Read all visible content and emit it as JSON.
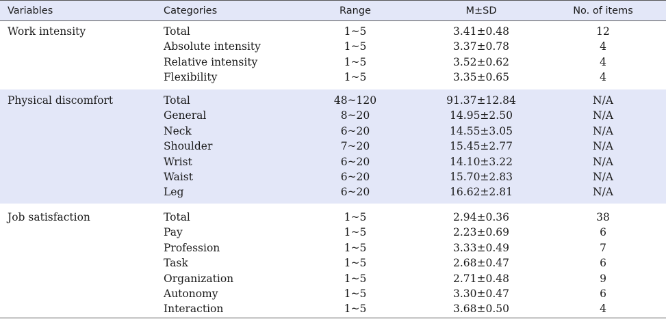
{
  "headers": {
    "variables": "Variables",
    "categories": "Categories",
    "range": "Range",
    "msd": "M±SD",
    "items": "No. of items"
  },
  "groups": [
    {
      "variable": "Work intensity",
      "rows": [
        {
          "category": "Total",
          "range": "1~5",
          "msd": "3.41±0.48",
          "items": "12"
        },
        {
          "category": "Absolute intensity",
          "range": "1~5",
          "msd": "3.37±0.78",
          "items": "4"
        },
        {
          "category": "Relative intensity",
          "range": "1~5",
          "msd": "3.52±0.62",
          "items": "4"
        },
        {
          "category": "Flexibility",
          "range": "1~5",
          "msd": "3.35±0.65",
          "items": "4"
        }
      ]
    },
    {
      "variable": "Physical discomfort",
      "rows": [
        {
          "category": "Total",
          "range": "48~120",
          "msd": "91.37±12.84",
          "items": "N/A"
        },
        {
          "category": "General",
          "range": "8~20",
          "msd": "14.95±2.50",
          "items": "N/A"
        },
        {
          "category": "Neck",
          "range": "6~20",
          "msd": "14.55±3.05",
          "items": "N/A"
        },
        {
          "category": "Shoulder",
          "range": "7~20",
          "msd": "15.45±2.77",
          "items": "N/A"
        },
        {
          "category": "Wrist",
          "range": "6~20",
          "msd": "14.10±3.22",
          "items": "N/A"
        },
        {
          "category": "Waist",
          "range": "6~20",
          "msd": "15.70±2.83",
          "items": "N/A"
        },
        {
          "category": "Leg",
          "range": "6~20",
          "msd": "16.62±2.81",
          "items": "N/A"
        }
      ]
    },
    {
      "variable": "Job satisfaction",
      "rows": [
        {
          "category": "Total",
          "range": "1~5",
          "msd": "2.94±0.36",
          "items": "38"
        },
        {
          "category": "Pay",
          "range": "1~5",
          "msd": "2.23±0.69",
          "items": "6"
        },
        {
          "category": "Profession",
          "range": "1~5",
          "msd": "3.33±0.49",
          "items": "7"
        },
        {
          "category": "Task",
          "range": "1~5",
          "msd": "2.68±0.47",
          "items": "6"
        },
        {
          "category": "Organization",
          "range": "1~5",
          "msd": "2.71±0.48",
          "items": "9"
        },
        {
          "category": "Autonomy",
          "range": "1~5",
          "msd": "3.30±0.47",
          "items": "6"
        },
        {
          "category": "Interaction",
          "range": "1~5",
          "msd": "3.68±0.50",
          "items": "4"
        }
      ]
    }
  ]
}
